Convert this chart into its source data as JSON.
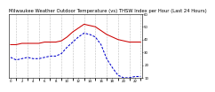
{
  "title": "Milwaukee Weather Outdoor Temperature (vs) THSW Index per Hour (Last 24 Hours)",
  "hours": [
    0,
    1,
    2,
    3,
    4,
    5,
    6,
    7,
    8,
    9,
    10,
    11,
    12,
    13,
    14,
    15,
    16,
    17,
    18,
    19,
    20,
    21,
    22,
    23
  ],
  "temp": [
    36,
    36,
    37,
    37,
    37,
    37,
    38,
    38,
    38,
    39,
    42,
    46,
    49,
    52,
    51,
    50,
    47,
    44,
    42,
    40,
    39,
    38,
    38,
    38
  ],
  "thsw": [
    26,
    24,
    25,
    26,
    25,
    25,
    26,
    27,
    27,
    29,
    34,
    38,
    42,
    45,
    44,
    42,
    36,
    25,
    18,
    12,
    10,
    10,
    11,
    11
  ],
  "temp_color": "#cc0000",
  "thsw_color": "#0000cc",
  "bg_color": "#ffffff",
  "grid_color": "#888888",
  "ylim_min": 10,
  "ylim_max": 60,
  "ytick_values": [
    10,
    20,
    30,
    40,
    50,
    60
  ],
  "title_fontsize": 3.8,
  "tick_fontsize": 2.8,
  "line_width": 0.75,
  "xlim_min": 0,
  "xlim_max": 23
}
